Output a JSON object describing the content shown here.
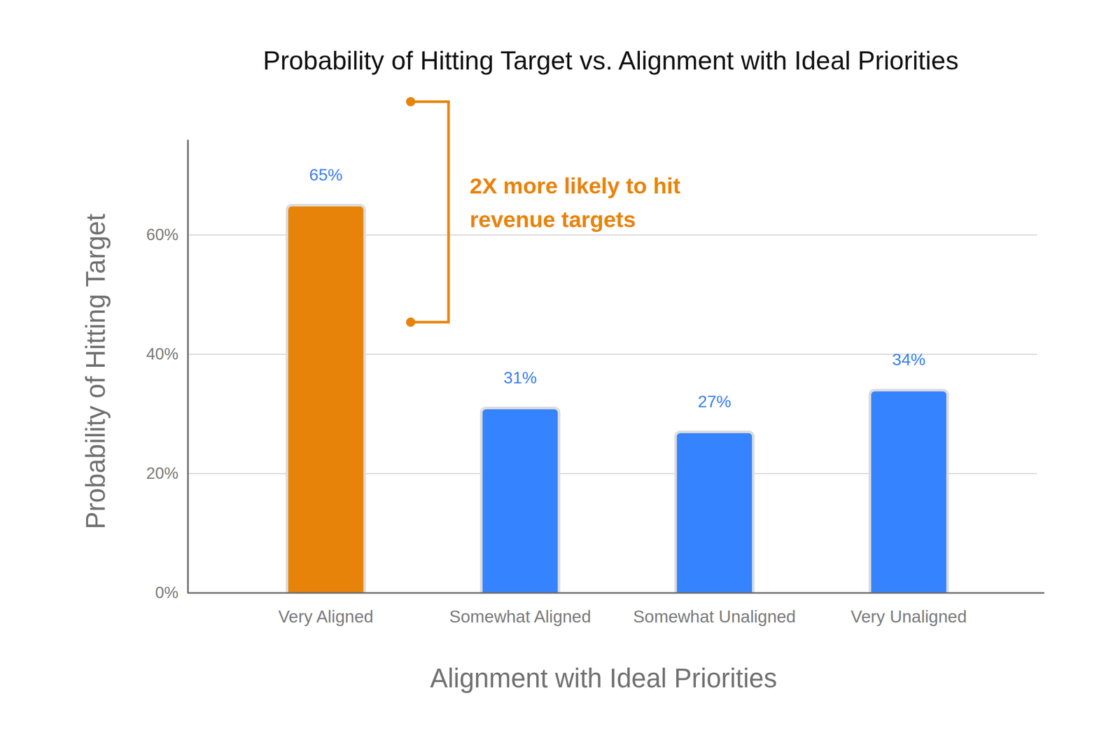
{
  "chart_data": {
    "type": "bar",
    "title": "Probability of Hitting Target vs. Alignment with Ideal Priorities",
    "x_label": "Alignment with Ideal Priorities",
    "y_label": "Probability of Hitting Target",
    "annotation": [
      "2X more likely to hit",
      "revenue targets"
    ],
    "categories": [
      "Very Aligned",
      "Somewhat Aligned",
      "Somewhat Unaligned",
      "Very Unaligned"
    ],
    "values": [
      65,
      31,
      27,
      34
    ],
    "value_labels": [
      "65%",
      "31%",
      "27%",
      "34%"
    ],
    "colors": [
      "#e8830a",
      "#3683ff",
      "#3683ff",
      "#3683ff"
    ],
    "ylim": [
      0,
      76
    ],
    "yticks": [
      {
        "value": 0,
        "label": "0%"
      },
      {
        "value": 20,
        "label": "20%"
      },
      {
        "value": 40,
        "label": "40%"
      },
      {
        "value": 60,
        "label": "60%"
      }
    ],
    "grid": true,
    "data_labels": true
  }
}
